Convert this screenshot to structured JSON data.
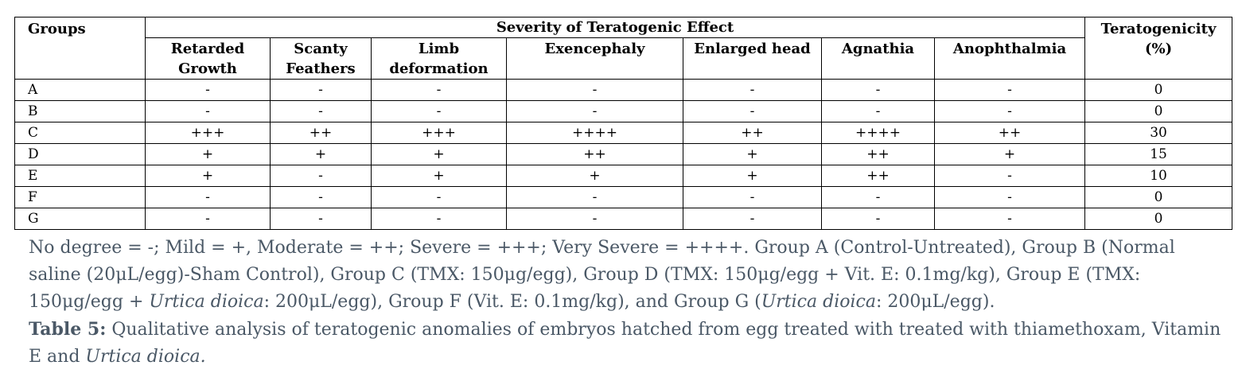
{
  "table": {
    "groups_header": "Groups",
    "severity_header": "Severity of Teratogenic Effect",
    "teratogenicity_header": "Teratogenicity (%)",
    "effect_columns": [
      [
        "Retarded",
        "Growth"
      ],
      [
        "Scanty",
        "Feathers"
      ],
      [
        "Limb",
        "deformation"
      ],
      [
        "Exencephaly",
        ""
      ],
      [
        "Enlarged head",
        ""
      ],
      [
        "Agnathia",
        ""
      ],
      [
        "Anophthalmia",
        ""
      ]
    ],
    "rows": [
      {
        "group": "A",
        "effects": [
          "-",
          "-",
          "-",
          "-",
          "-",
          "-",
          "-"
        ],
        "teratogenicity": "0"
      },
      {
        "group": "B",
        "effects": [
          "-",
          "-",
          "-",
          "-",
          "-",
          "-",
          "-"
        ],
        "teratogenicity": "0"
      },
      {
        "group": "C",
        "effects": [
          "+++",
          "++",
          "+++",
          "++++",
          "++",
          "++++",
          "++"
        ],
        "teratogenicity": "30"
      },
      {
        "group": "D",
        "effects": [
          "+",
          "+",
          "+",
          "++",
          "+",
          "++",
          "+"
        ],
        "teratogenicity": "15"
      },
      {
        "group": "E",
        "effects": [
          "+",
          "-",
          "+",
          "+",
          "+",
          "++",
          "-"
        ],
        "teratogenicity": "10"
      },
      {
        "group": "F",
        "effects": [
          "-",
          "-",
          "-",
          "-",
          "-",
          "-",
          "-"
        ],
        "teratogenicity": "0"
      },
      {
        "group": "G",
        "effects": [
          "-",
          "-",
          "-",
          "-",
          "-",
          "-",
          "-"
        ],
        "teratogenicity": "0"
      }
    ]
  },
  "legend": {
    "part1": "No degree = -; Mild = +, Moderate = ++; Severe = +++; Very Severe = ++++.  Group A (Control-Untreated), Group B (Normal saline (20μL/egg)-Sham Control), Group C (TMX: 150μg/egg), Group D (TMX: 150μg/egg + Vit. E: 0.1mg/kg), Group E (TMX: 150μg/egg + ",
    "species1": "Urtica dioica",
    "part2": ": 200μL/egg), Group F (Vit. E: 0.1mg/kg), and Group G (",
    "species2": "Urtica dioica",
    "part3": ": 200μL/egg)."
  },
  "caption": {
    "label": "Table 5:",
    "text": " Qualitative analysis of teratogenic anomalies of embryos hatched from egg treated with treated with thiamethoxam, Vitamin E and ",
    "species": "Urtica dioica."
  }
}
